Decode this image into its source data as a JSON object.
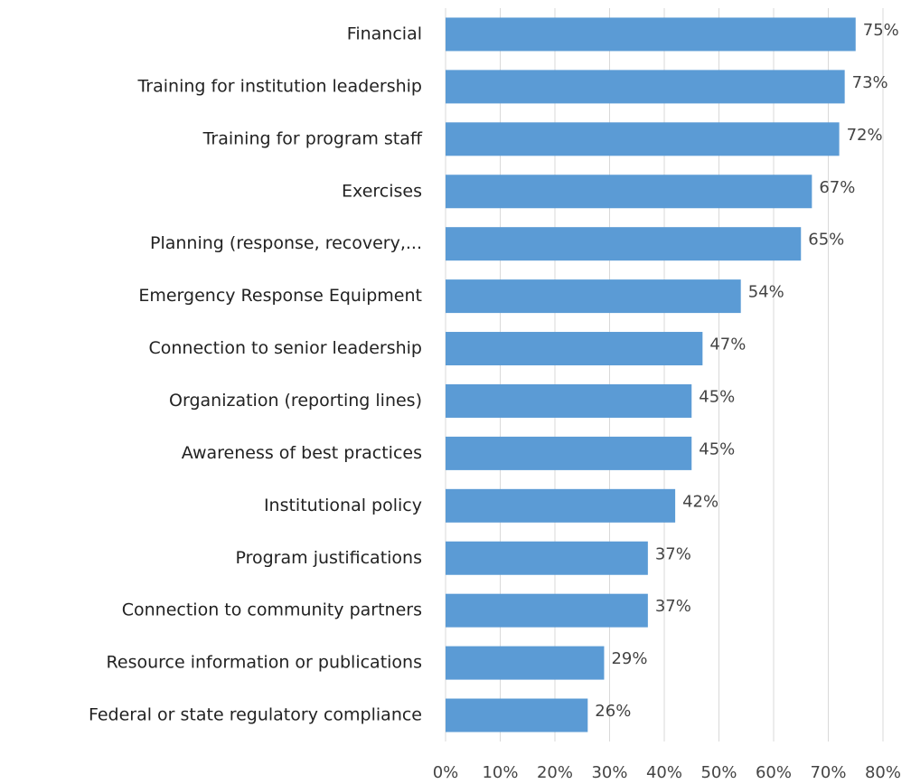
{
  "chart_data": {
    "type": "barh",
    "categories": [
      "Financial",
      "Training for institution leadership",
      "Training for program staff",
      "Exercises",
      "Planning (response, recovery,...",
      "Emergency Response Equipment",
      "Connection to senior leadership",
      "Organization (reporting lines)",
      "Awareness of best practices",
      "Institutional policy",
      "Program justifications",
      "Connection to community partners",
      "Resource information or publications",
      "Federal or state regulatory compliance"
    ],
    "values": [
      75,
      73,
      72,
      67,
      65,
      54,
      47,
      45,
      45,
      42,
      37,
      37,
      29,
      26
    ],
    "value_labels": [
      "75%",
      "73%",
      "72%",
      "67%",
      "65%",
      "54%",
      "47%",
      "45%",
      "45%",
      "42%",
      "37%",
      "37%",
      "29%",
      "26%"
    ],
    "color": "#5b9bd5",
    "xlim": [
      0,
      80
    ],
    "xticks": [
      {
        "value": 0,
        "label": "0%"
      },
      {
        "value": 10,
        "label": "10%"
      },
      {
        "value": 20,
        "label": "20%"
      },
      {
        "value": 30,
        "label": "30%"
      },
      {
        "value": 40,
        "label": "40%"
      },
      {
        "value": 50,
        "label": "50%"
      },
      {
        "value": 60,
        "label": "60%"
      },
      {
        "value": 70,
        "label": "70%"
      },
      {
        "value": 80,
        "label": "80%"
      }
    ],
    "grid": true
  }
}
